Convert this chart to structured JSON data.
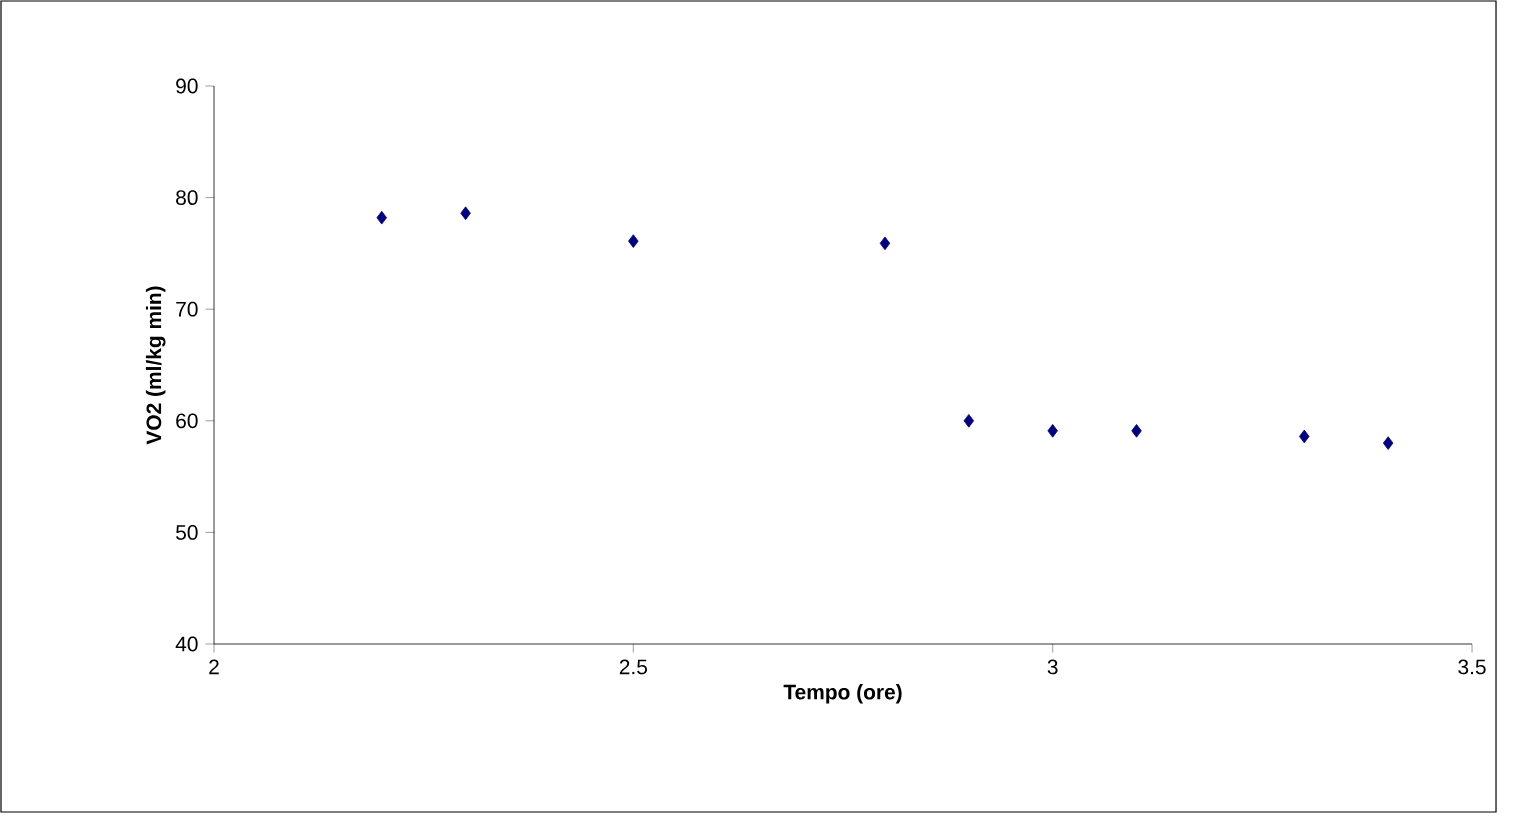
{
  "chart_data": {
    "type": "scatter",
    "xlabel": "Tempo (ore)",
    "ylabel": "VO2 (ml/kg min)",
    "x": [
      2.2,
      2.3,
      2.5,
      2.8,
      2.9,
      3.0,
      3.1,
      3.3,
      3.4
    ],
    "values": [
      78.2,
      78.6,
      76.1,
      75.9,
      60.0,
      59.1,
      59.1,
      58.6,
      58.0
    ],
    "color": "#000080",
    "marker": "diamond",
    "xlim": [
      2,
      3.5
    ],
    "xticks": [
      2,
      2.5,
      3,
      3.5
    ],
    "ylim": [
      40,
      90
    ],
    "yticks": [
      40,
      50,
      60,
      70,
      80,
      90
    ]
  }
}
